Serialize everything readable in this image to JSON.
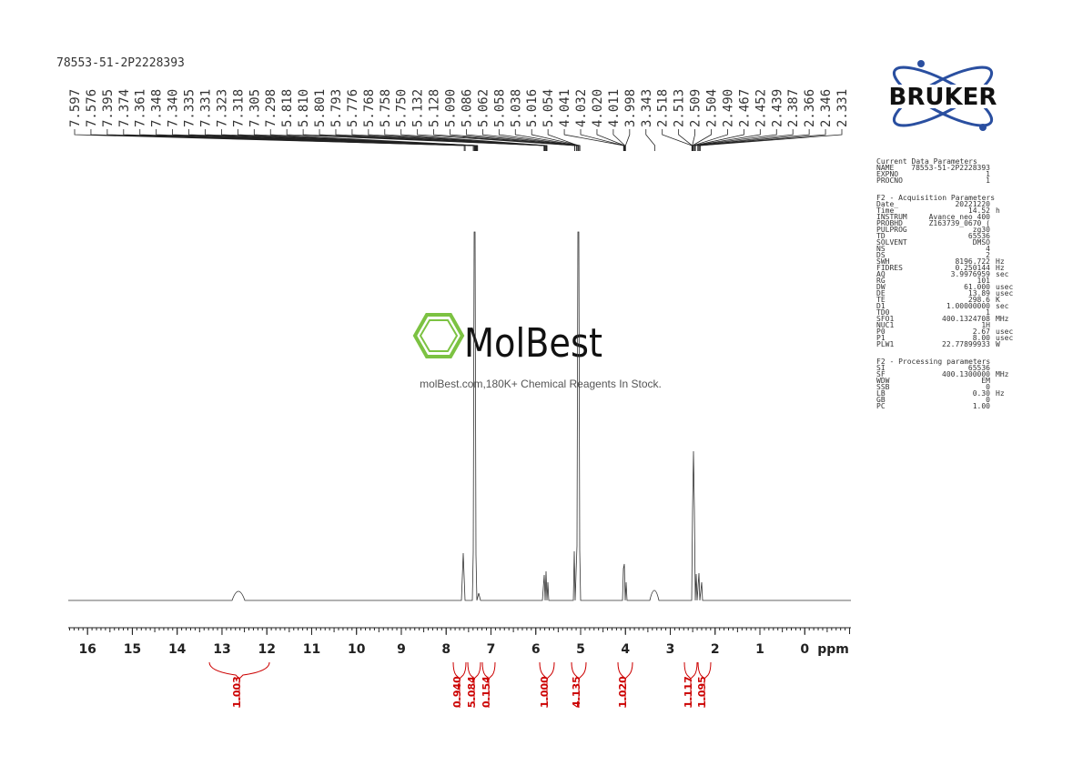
{
  "sample_id": "78553-51-2P2228393",
  "peak_labels": [
    "7.597",
    "7.576",
    "7.395",
    "7.374",
    "7.361",
    "7.348",
    "7.340",
    "7.335",
    "7.331",
    "7.323",
    "7.318",
    "7.305",
    "7.298",
    "5.818",
    "5.810",
    "5.801",
    "5.793",
    "5.776",
    "5.768",
    "5.758",
    "5.750",
    "5.132",
    "5.128",
    "5.090",
    "5.086",
    "5.062",
    "5.058",
    "5.038",
    "5.016",
    "5.054",
    "4.041",
    "4.032",
    "4.020",
    "4.011",
    "3.998",
    "3.343",
    "2.518",
    "2.513",
    "2.509",
    "2.504",
    "2.490",
    "2.467",
    "2.452",
    "2.439",
    "2.387",
    "2.366",
    "2.346",
    "2.331"
  ],
  "axis": {
    "xlim": [
      16.43,
      -1.03
    ],
    "xticks": [
      16,
      15,
      14,
      13,
      12,
      11,
      10,
      9,
      8,
      7,
      6,
      5,
      4,
      3,
      2,
      1,
      0
    ],
    "unit": "ppm"
  },
  "integrals": [
    "1.003",
    "0.940",
    "5.084",
    "0.154",
    "1.000",
    "4.135",
    "1.020",
    "1.117",
    "1.095"
  ],
  "watermark": {
    "brand": "MolBest",
    "tagline": "molBest.com,180K+ Chemical Reagents In Stock."
  },
  "logo": "BRUKER",
  "parameters": [
    {
      "title": "Current Data Parameters",
      "rows": [
        [
          "NAME",
          "78553-51-2P2228393",
          ""
        ],
        [
          "EXPNO",
          "1",
          ""
        ],
        [
          "PROCNO",
          "1",
          ""
        ]
      ]
    },
    {
      "title": "F2 - Acquisition Parameters",
      "rows": [
        [
          "Date_",
          "20221220",
          ""
        ],
        [
          "Time",
          "14.52",
          "h"
        ],
        [
          "INSTRUM",
          "Avance neo 400",
          ""
        ],
        [
          "PROBHD",
          "Z163739_0670 (",
          ""
        ],
        [
          "PULPROG",
          "zg30",
          ""
        ],
        [
          "TD",
          "65536",
          ""
        ],
        [
          "SOLVENT",
          "DMSO",
          ""
        ],
        [
          "NS",
          "4",
          ""
        ],
        [
          "DS",
          "2",
          ""
        ],
        [
          "SWH",
          "8196.722",
          "Hz"
        ],
        [
          "FIDRES",
          "0.250144",
          "Hz"
        ],
        [
          "AQ",
          "3.9976959",
          "sec"
        ],
        [
          "RG",
          "101",
          ""
        ],
        [
          "DW",
          "61.000",
          "usec"
        ],
        [
          "DE",
          "13.89",
          "usec"
        ],
        [
          "TE",
          "298.6",
          "K"
        ],
        [
          "D1",
          "1.00000000",
          "sec"
        ],
        [
          "TD0",
          "1",
          ""
        ],
        [
          "SFO1",
          "400.1324708",
          "MHz"
        ],
        [
          "NUC1",
          "1H",
          ""
        ],
        [
          "P0",
          "2.67",
          "usec"
        ],
        [
          "P1",
          "8.00",
          "usec"
        ],
        [
          "PLW1",
          "22.77899933",
          "W"
        ]
      ]
    },
    {
      "title": "F2 - Processing parameters",
      "rows": [
        [
          "SI",
          "65536",
          ""
        ],
        [
          "SF",
          "400.1300000",
          "MHz"
        ],
        [
          "WDW",
          "EM",
          ""
        ],
        [
          "SSB",
          "0",
          ""
        ],
        [
          "LB",
          "0.30",
          "Hz"
        ],
        [
          "GB",
          "0",
          ""
        ],
        [
          "PC",
          "1.00",
          ""
        ]
      ]
    }
  ]
}
